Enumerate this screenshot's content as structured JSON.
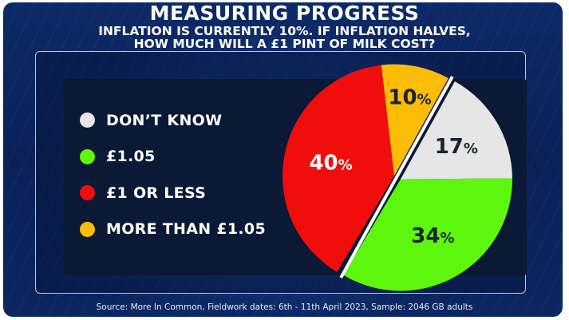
{
  "header": {
    "title": "MEASURING PROGRESS",
    "subtitle_line1": "INFLATION IS CURRENTLY 10%. IF INFLATION HALVES,",
    "subtitle_line2": "HOW MUCH WILL A £1 PINT OF MILK COST?"
  },
  "footer": {
    "source": "Source: More In Common, Fieldwork dates: 6th - 11th April 2023, Sample: 2046 GB adults"
  },
  "chart_data": {
    "type": "pie",
    "title": "MEASURING PROGRESS",
    "legend_placement": "left",
    "categories": [
      "DON’T KNOW",
      "£1.05",
      "£1 OR LESS",
      "MORE THAN £1.05"
    ],
    "values": [
      17,
      34,
      40,
      10
    ],
    "colors": [
      "#e6e6e6",
      "#5cf70d",
      "#f20d0d",
      "#fbbc05"
    ],
    "data_labels": [
      "17",
      "34",
      "40",
      "10"
    ],
    "unit": "%"
  }
}
